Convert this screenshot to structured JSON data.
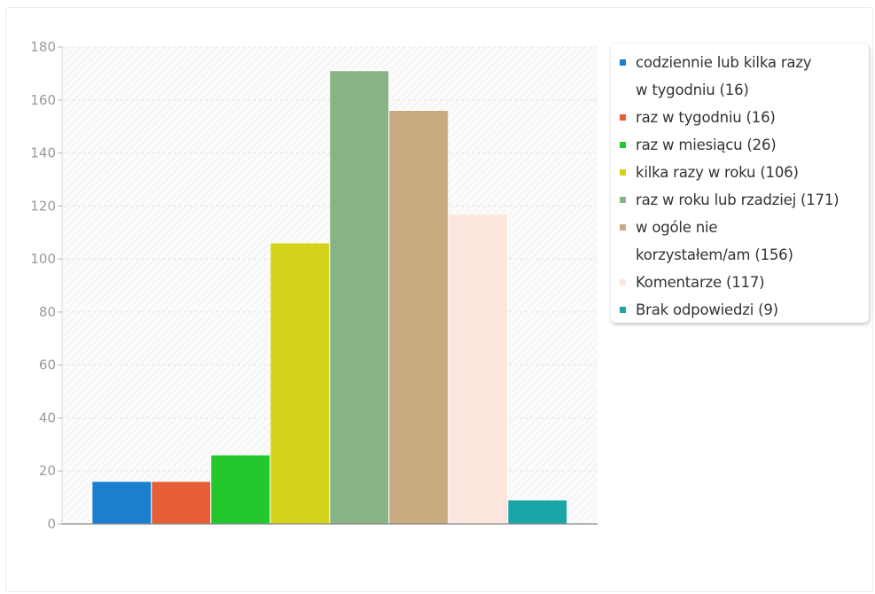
{
  "chart_data": {
    "type": "bar",
    "title": "",
    "xlabel": "",
    "ylabel": "",
    "ylim": [
      0,
      180
    ],
    "yticks": [
      0,
      20,
      40,
      60,
      80,
      100,
      120,
      140,
      160,
      180
    ],
    "grid": true,
    "legend_position": "right",
    "series": [
      {
        "name": "codziennie lub kilka razy w tygodniu (16)",
        "value": 16,
        "color": "#1a7fcf"
      },
      {
        "name": "raz w tygodniu (16)",
        "value": 16,
        "color": "#e65e37"
      },
      {
        "name": "raz w miesiącu (26)",
        "value": 26,
        "color": "#22c82c"
      },
      {
        "name": "kilka razy w roku (106)",
        "value": 106,
        "color": "#d2d21b"
      },
      {
        "name": "raz w roku lub rzadziej (171)",
        "value": 171,
        "color": "#88b384"
      },
      {
        "name": "w ogóle nie korzystałem/am (156)",
        "value": 156,
        "color": "#c8a980"
      },
      {
        "name": "Komentarze (117)",
        "value": 117,
        "color": "#fce6de"
      },
      {
        "name": "Brak odpowiedzi (9)",
        "value": 9,
        "color": "#1aa6a6"
      }
    ]
  }
}
